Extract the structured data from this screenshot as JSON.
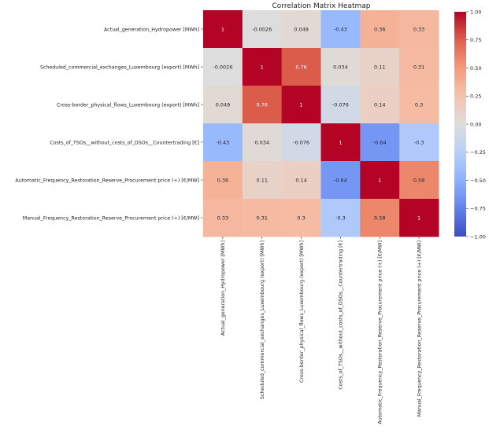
{
  "chart_data": {
    "type": "heatmap",
    "title": "Correlation Matrix Heatmap",
    "xlabel": "",
    "ylabel": "",
    "labels": [
      "Actual_generation_Hydropower [MWh]",
      "Scheduled_commercial_exchanges_Luxembourg (export) [MWh]",
      "Cross-border_physical_flows_Luxembourg (export) [MWh]",
      "Costs_of_TSOs__without_costs_of_DSOs__Countertrading [€]",
      "Automatic_Frequency_Restoration_Reserve_Procurement price (+) [€/MW]",
      "Manual_Frequency_Restoration_Reserve_Procurement price (+) [€/MW]"
    ],
    "matrix": [
      [
        1,
        -0.0026,
        0.049,
        -0.43,
        0.36,
        0.33
      ],
      [
        -0.0026,
        1,
        0.76,
        0.034,
        0.11,
        0.31
      ],
      [
        0.049,
        0.76,
        1,
        -0.076,
        0.14,
        0.3
      ],
      [
        -0.43,
        0.034,
        -0.076,
        1,
        -0.64,
        -0.3
      ],
      [
        0.36,
        0.11,
        0.14,
        -0.64,
        1,
        0.58
      ],
      [
        0.33,
        0.31,
        0.3,
        -0.3,
        0.58,
        1
      ]
    ],
    "annotations": [
      [
        "1",
        "-0.0026",
        "0.049",
        "-0.43",
        "0.36",
        "0.33"
      ],
      [
        "-0.0026",
        "1",
        "0.76",
        "0.034",
        "0.11",
        "0.31"
      ],
      [
        "0.049",
        "0.76",
        "1",
        "-0.076",
        "0.14",
        "0.3"
      ],
      [
        "-0.43",
        "0.034",
        "-0.076",
        "1",
        "-0.64",
        "-0.3"
      ],
      [
        "0.36",
        "0.11",
        "0.14",
        "-0.64",
        "1",
        "0.58"
      ],
      [
        "0.33",
        "0.31",
        "0.3",
        "-0.3",
        "0.58",
        "1"
      ]
    ],
    "colormap": "coolwarm",
    "vmin": -1,
    "vmax": 1,
    "colorbar": {
      "ticks": [
        1.0,
        0.75,
        0.5,
        0.25,
        0.0,
        -0.25,
        -0.5,
        -0.75,
        -1.0
      ],
      "tick_labels": [
        "1.00",
        "0.75",
        "0.50",
        "0.25",
        "0.00",
        "−0.25",
        "−0.50",
        "−0.75",
        "−1.00"
      ],
      "placement": "right"
    },
    "grid": false
  }
}
